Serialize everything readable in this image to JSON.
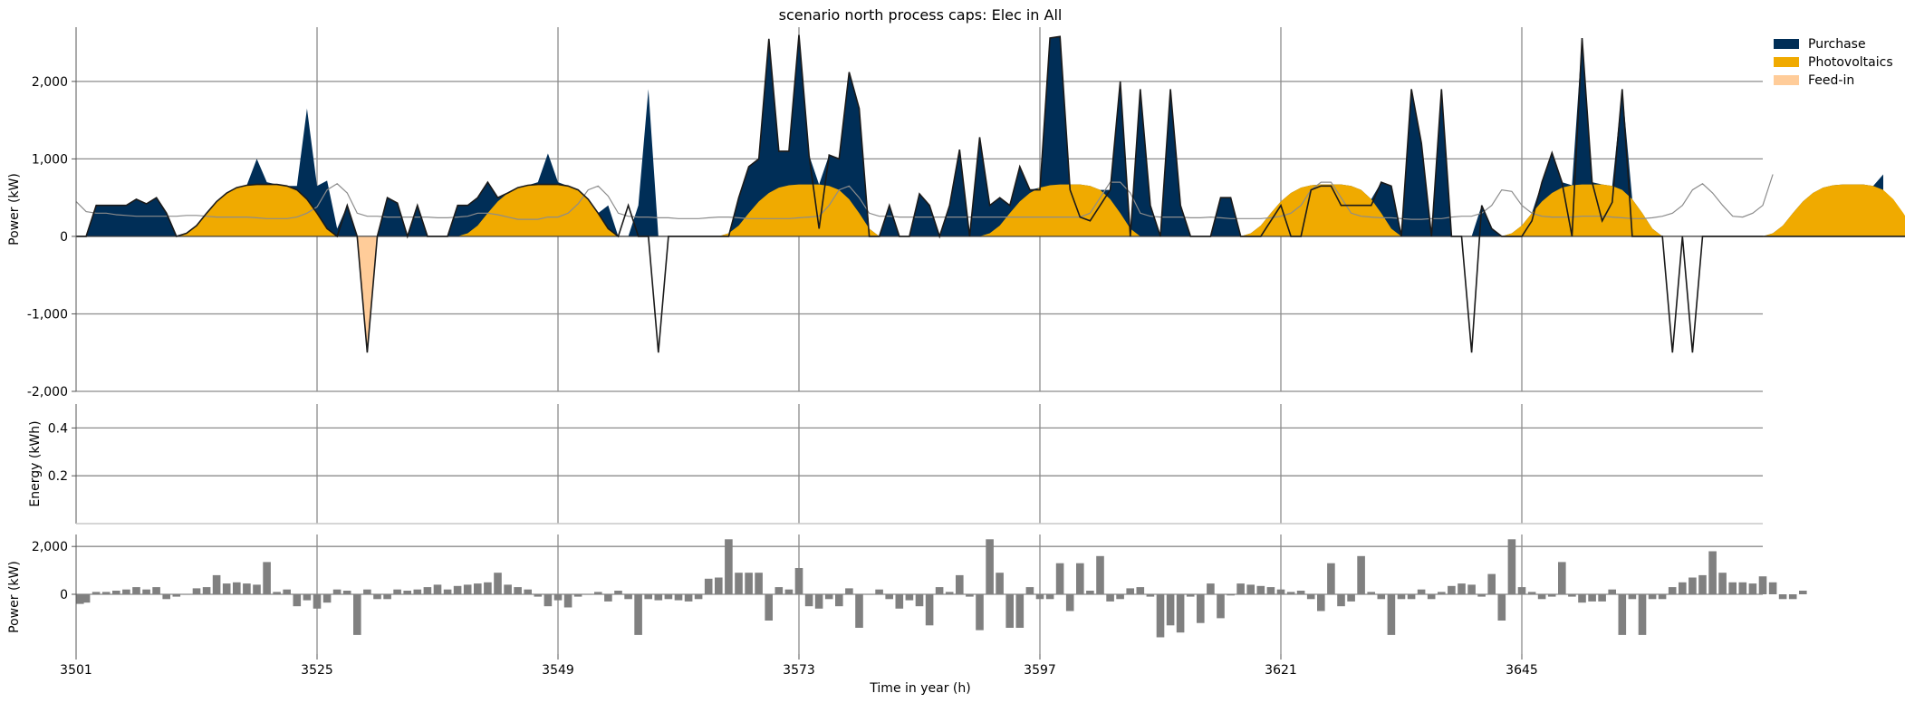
{
  "chart_data": {
    "type": "area",
    "title": "scenario north process caps: Elec in All",
    "xlabel": "Time in year (h)",
    "x_range": [
      3501,
      3669
    ],
    "x_ticks": [
      3501,
      3525,
      3549,
      3573,
      3597,
      3621,
      3645
    ],
    "x_tick_labels": [
      "3501",
      "3525",
      "3549",
      "3573",
      "3597",
      "3621",
      "3645"
    ],
    "legend_position": "top-right",
    "colors": {
      "purchase": "#002e57",
      "photovoltaics": "#f0aa00",
      "feedin": "#ffcc99",
      "demand_line": "#1a1a1a",
      "thin_line": "#8c8c8c",
      "bars": "#808080",
      "grid": "#8c8c8c"
    },
    "panels": [
      {
        "name": "power",
        "ylabel": "Power (kW)",
        "ylim": [
          -2000,
          2700
        ],
        "y_ticks": [
          -2000,
          -1000,
          0,
          1000,
          2000
        ],
        "y_tick_labels": [
          "-2,000",
          "-1,000",
          "0",
          "1,000",
          "2,000"
        ],
        "series": [
          {
            "name": "Purchase",
            "kind": "stacked-area",
            "values": [
              0,
              0,
              400,
              400,
              400,
              400,
              480,
              420,
              500,
              300,
              0,
              0,
              0,
              0,
              0,
              0,
              400,
              600,
              1000,
              700,
              600,
              650,
              650,
              1650,
              650,
              720,
              100,
              400,
              0,
              0,
              0,
              500,
              430,
              0,
              400,
              0,
              0,
              0,
              400,
              400,
              500,
              700,
              500,
              0,
              0,
              0,
              700,
              1070,
              700,
              400,
              0,
              0,
              0,
              400,
              0,
              0,
              400,
              1900,
              0,
              0,
              0,
              0,
              0,
              0,
              0,
              0,
              500,
              900,
              1000,
              2550,
              1100,
              1100,
              2600,
              1050,
              100,
              1050,
              1000,
              2120,
              1650,
              0,
              0,
              400,
              0,
              0,
              550,
              400,
              0,
              400,
              1120,
              0,
              1280,
              400,
              500,
              400,
              900,
              600,
              600,
              2560,
              2580,
              600,
              250,
              200,
              400,
              600,
              2000,
              0,
              1900,
              400,
              0,
              1900,
              400,
              0,
              0,
              0,
              500,
              500,
              0,
              0,
              0,
              200,
              400,
              0,
              0,
              600,
              650,
              650,
              400,
              400,
              400,
              400,
              700,
              650,
              0,
              1900,
              1200,
              0,
              1900,
              0,
              0,
              0,
              400,
              100,
              0,
              0,
              0,
              200,
              700,
              1080,
              700,
              0,
              2560,
              700,
              200,
              440,
              1900,
              0,
              0,
              0,
              0,
              0,
              0,
              0,
              0,
              0,
              0,
              0,
              0,
              0,
              0,
              0,
              0,
              0,
              0,
              0,
              0,
              0,
              0,
              0,
              0,
              0,
              800
            ]
          },
          {
            "name": "Photovoltaics",
            "kind": "stacked-area",
            "values": [
              0,
              0,
              0,
              0,
              0,
              0,
              0,
              0,
              0,
              0,
              0,
              40,
              140,
              300,
              450,
              560,
              630,
              660,
              670,
              670,
              670,
              650,
              600,
              480,
              300,
              100,
              0,
              0,
              0,
              0,
              0,
              0,
              0,
              0,
              0,
              0,
              0,
              0,
              0,
              40,
              140,
              300,
              450,
              560,
              630,
              660,
              670,
              670,
              670,
              650,
              600,
              480,
              300,
              100,
              0,
              0,
              0,
              0,
              0,
              0,
              0,
              0,
              0,
              0,
              0,
              40,
              140,
              300,
              450,
              560,
              630,
              660,
              670,
              670,
              670,
              650,
              600,
              480,
              300,
              100,
              0,
              0,
              0,
              0,
              0,
              0,
              0,
              0,
              0,
              0,
              0,
              40,
              140,
              300,
              450,
              560,
              630,
              660,
              670,
              670,
              670,
              650,
              600,
              480,
              300,
              100,
              0,
              0,
              0,
              0,
              0,
              0,
              0,
              0,
              0,
              0,
              0,
              40,
              140,
              300,
              450,
              560,
              630,
              660,
              670,
              670,
              670,
              650,
              600,
              480,
              300,
              100,
              0,
              0,
              0,
              0,
              0,
              0,
              0,
              0,
              0,
              0,
              0,
              40,
              140,
              300,
              450,
              560,
              630,
              660,
              670,
              670,
              670,
              650,
              600,
              480,
              300,
              100,
              0,
              0,
              0,
              0,
              0,
              0,
              0,
              0,
              0,
              0,
              0,
              40,
              140,
              300,
              450,
              560,
              630,
              660,
              670,
              670,
              670,
              650,
              600,
              480,
              300,
              100,
              0,
              0,
              0,
              0,
              0,
              0,
              0,
              0,
              0,
              0
            ]
          },
          {
            "name": "Feed-in",
            "kind": "negative-area",
            "values": [
              0,
              0,
              0,
              0,
              0,
              0,
              0,
              0,
              0,
              0,
              0,
              0,
              0,
              0,
              0,
              0,
              0,
              0,
              0,
              0,
              0,
              0,
              0,
              0,
              0,
              0,
              0,
              0,
              0,
              -1500,
              0,
              0,
              0,
              0,
              0,
              0,
              0,
              0,
              0,
              0,
              0,
              0,
              0,
              0,
              0,
              0,
              0,
              0,
              0,
              0,
              0,
              0,
              0,
              0,
              0,
              0,
              0,
              0,
              0,
              0,
              0,
              0,
              0,
              0,
              0,
              0,
              0,
              0,
              0,
              0,
              0,
              0,
              0,
              0,
              0,
              0,
              0,
              0,
              0,
              0,
              0,
              0,
              0,
              0,
              0,
              0,
              0,
              0,
              0,
              0,
              0,
              0,
              0,
              0,
              0,
              0,
              0,
              0,
              0,
              0,
              0,
              0,
              0,
              0,
              0,
              0,
              0,
              0,
              0,
              0,
              0,
              0,
              0,
              0,
              0,
              0,
              0,
              0,
              0,
              0,
              0,
              0,
              0,
              0,
              0,
              0,
              0,
              0,
              0,
              0,
              0,
              0,
              0,
              0,
              0,
              0,
              0,
              0,
              0,
              0,
              0,
              0,
              0,
              0,
              0,
              0,
              0,
              0,
              0,
              0,
              0,
              0,
              0,
              0,
              0,
              0,
              0,
              0,
              0,
              0,
              0,
              0,
              0,
              0,
              0,
              0,
              0,
              0,
              0,
              0,
              0,
              0,
              0,
              0
            ]
          }
        ],
        "demand_line": [
          0,
          0,
          400,
          400,
          400,
          400,
          480,
          420,
          500,
          300,
          0,
          40,
          140,
          300,
          450,
          560,
          630,
          660,
          670,
          670,
          670,
          650,
          600,
          480,
          300,
          100,
          0,
          400,
          0,
          -1500,
          0,
          500,
          430,
          0,
          400,
          0,
          0,
          0,
          400,
          400,
          500,
          700,
          500,
          560,
          630,
          660,
          670,
          670,
          670,
          650,
          600,
          480,
          300,
          100,
          0,
          400,
          0,
          0,
          -1500,
          0,
          0,
          0,
          0,
          0,
          0,
          0,
          500,
          900,
          1000,
          2550,
          1100,
          1100,
          2600,
          1050,
          100,
          1050,
          1000,
          2120,
          1650,
          0,
          0,
          400,
          0,
          0,
          550,
          400,
          0,
          400,
          1120,
          0,
          1280,
          400,
          500,
          400,
          900,
          600,
          600,
          2560,
          2580,
          600,
          250,
          200,
          400,
          600,
          2000,
          0,
          1900,
          400,
          0,
          1900,
          400,
          0,
          0,
          0,
          500,
          500,
          0,
          0,
          0,
          200,
          400,
          0,
          0,
          600,
          650,
          650,
          400,
          400,
          400,
          400,
          700,
          650,
          0,
          1900,
          1200,
          0,
          1900,
          0,
          0,
          -1500,
          400,
          100,
          0,
          0,
          0,
          200,
          700,
          1080,
          700,
          0,
          2560,
          700,
          200,
          440,
          1900,
          0,
          0,
          0,
          0,
          -1500,
          0,
          -1500,
          0,
          0,
          0,
          0,
          0,
          0,
          0,
          0,
          0,
          0,
          0,
          0,
          0,
          0,
          0,
          0,
          0,
          0,
          0,
          0,
          0,
          0,
          800
        ],
        "thin_line": [
          450,
          320,
          300,
          300,
          280,
          270,
          260,
          260,
          260,
          260,
          260,
          270,
          270,
          260,
          250,
          250,
          250,
          250,
          240,
          230,
          230,
          230,
          250,
          300,
          380,
          600,
          680,
          560,
          300,
          260,
          260,
          250,
          250,
          250,
          250,
          250,
          240,
          240,
          250,
          260,
          300,
          300,
          280,
          250,
          220,
          220,
          220,
          250,
          250,
          300,
          420,
          600,
          650,
          520,
          300,
          260,
          250,
          250,
          240,
          240,
          230,
          230,
          230,
          240,
          250,
          250,
          240,
          230,
          230,
          230,
          230,
          230,
          240,
          250,
          260,
          400,
          600,
          650,
          500,
          300,
          260,
          260,
          250,
          250,
          250,
          250,
          250,
          250,
          250,
          250,
          250,
          250,
          250,
          250,
          250,
          250,
          250,
          250,
          250,
          250,
          250,
          300,
          500,
          700,
          700,
          560,
          300,
          260,
          250,
          250,
          250,
          240,
          240,
          250,
          240,
          230,
          230,
          230,
          230,
          240,
          260,
          300,
          400,
          600,
          700,
          700,
          500,
          300,
          260,
          250,
          240,
          240,
          230,
          220,
          220,
          230,
          230,
          250,
          260,
          260,
          300,
          400,
          600,
          580,
          400,
          300,
          260,
          250,
          250,
          250,
          260,
          260,
          260,
          250,
          240,
          230,
          230,
          240,
          260,
          300,
          400,
          600,
          680,
          560,
          400,
          260,
          250,
          300,
          400,
          800
        ]
      },
      {
        "name": "energy",
        "ylabel": "Energy (kWh)",
        "ylim": [
          0,
          0.5
        ],
        "y_ticks": [
          0.2,
          0.4
        ],
        "y_tick_labels": [
          "0.2",
          "0.4"
        ]
      },
      {
        "name": "balance",
        "ylabel": "Power (kW)",
        "ylim": [
          -2500,
          2500
        ],
        "y_ticks": [
          0,
          2000
        ],
        "y_tick_labels": [
          "0",
          "2,000"
        ],
        "bars": [
          -400,
          -350,
          100,
          100,
          150,
          200,
          300,
          200,
          300,
          -200,
          -100,
          0,
          250,
          300,
          800,
          450,
          500,
          450,
          400,
          1350,
          100,
          200,
          -500,
          -250,
          -600,
          -350,
          200,
          150,
          -1700,
          200,
          -200,
          -200,
          200,
          150,
          200,
          300,
          400,
          200,
          350,
          400,
          450,
          500,
          900,
          400,
          300,
          200,
          -100,
          -500,
          -250,
          -550,
          -100,
          0,
          100,
          -300,
          150,
          -200,
          -1700,
          -200,
          -250,
          -200,
          -250,
          -300,
          -200,
          650,
          700,
          2300,
          900,
          900,
          900,
          -1100,
          300,
          200,
          1100,
          -500,
          -600,
          -200,
          -500,
          250,
          -1400,
          0,
          200,
          -200,
          -600,
          -250,
          -500,
          -1300,
          300,
          100,
          800,
          -100,
          -1500,
          2300,
          900,
          -1400,
          -1400,
          300,
          -200,
          -200,
          1300,
          -700,
          1300,
          150,
          1600,
          -300,
          -200,
          250,
          300,
          -100,
          -1800,
          -1300,
          -1600,
          -100,
          -1200,
          450,
          -1000,
          -50,
          450,
          400,
          350,
          300,
          200,
          100,
          150,
          -200,
          -700,
          1300,
          -500,
          -300,
          1600,
          100,
          -200,
          -1700,
          -200,
          -200,
          200,
          -200,
          100,
          350,
          450,
          400,
          -100,
          850,
          -1100,
          2300,
          300,
          100,
          -200,
          -100,
          1350,
          -100,
          -350,
          -300,
          -300,
          200,
          -1700,
          -200,
          -1700,
          -200,
          -200,
          300,
          500,
          700,
          800,
          1800,
          900,
          500,
          500,
          450,
          750,
          500,
          -200,
          -200,
          150
        ]
      }
    ]
  },
  "legend": {
    "purchase_label": "Purchase",
    "photovoltaics_label": "Photovoltaics",
    "feedin_label": "Feed-in"
  }
}
